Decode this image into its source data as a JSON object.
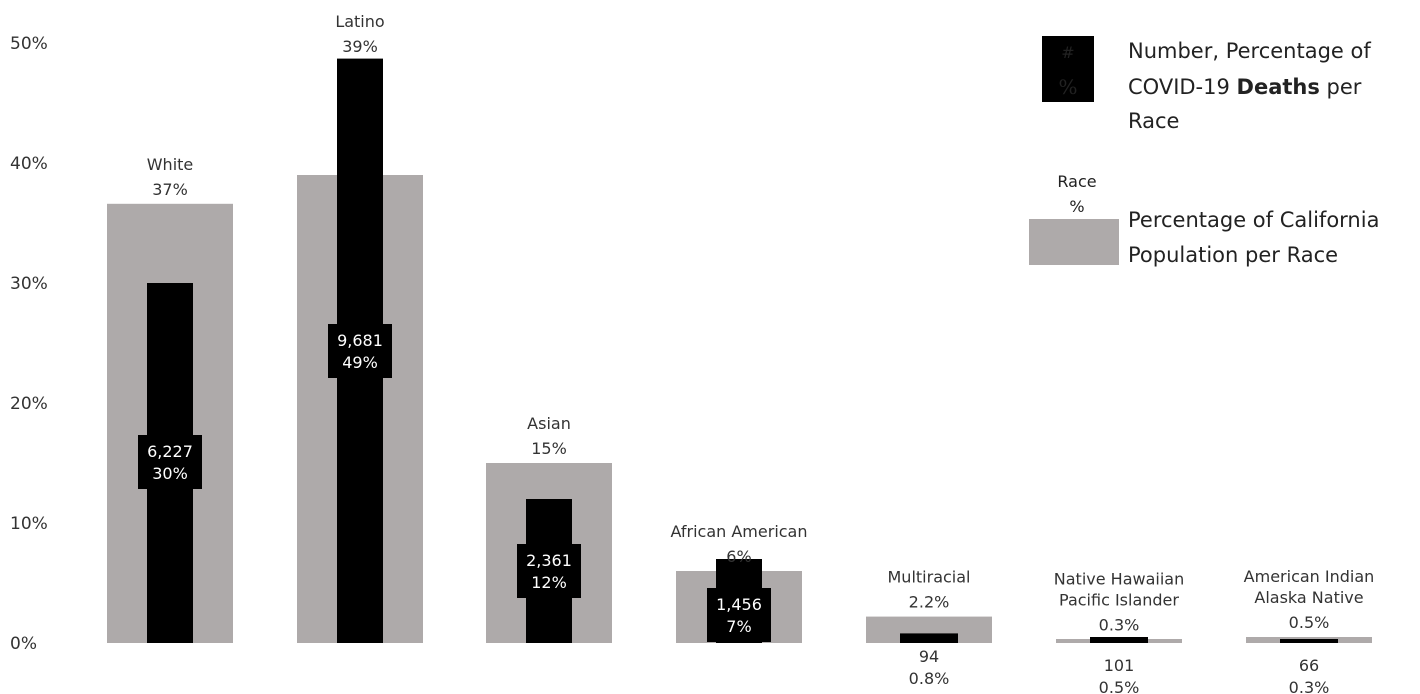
{
  "chart_data": {
    "type": "bar",
    "title": "",
    "xlabel": "",
    "ylabel": "",
    "ylim": [
      0,
      50
    ],
    "yticks": [
      "0%",
      "10%",
      "20%",
      "30%",
      "40%",
      "50%"
    ],
    "grid": false,
    "legend_placement": "top-right",
    "categories": [
      {
        "name_lines": [
          "White"
        ],
        "pop_label": "37%",
        "deaths_label_number": "6,227",
        "deaths_label_pct": "30%"
      },
      {
        "name_lines": [
          "Latino"
        ],
        "pop_label": "39%",
        "deaths_label_number": "9,681",
        "deaths_label_pct": "49%"
      },
      {
        "name_lines": [
          "Asian"
        ],
        "pop_label": "15%",
        "deaths_label_number": "2,361",
        "deaths_label_pct": "12%"
      },
      {
        "name_lines": [
          "African American"
        ],
        "pop_label": "6%",
        "deaths_label_number": "1,456",
        "deaths_label_pct": "7%"
      },
      {
        "name_lines": [
          "Multiracial"
        ],
        "pop_label": "2.2%",
        "deaths_label_number": "94",
        "deaths_label_pct": "0.8%"
      },
      {
        "name_lines": [
          "Native Hawaiian",
          "Pacific Islander"
        ],
        "pop_label": "0.3%",
        "deaths_label_number": "101",
        "deaths_label_pct": "0.5%"
      },
      {
        "name_lines": [
          "American Indian",
          "Alaska Native"
        ],
        "pop_label": "0.5%",
        "deaths_label_number": "66",
        "deaths_label_pct": "0.3%"
      }
    ],
    "series": [
      {
        "key": "population",
        "color": "#aeaaaa",
        "values": [
          36.6,
          39.0,
          15.0,
          6.0,
          2.2,
          0.3,
          0.5
        ]
      },
      {
        "key": "deaths",
        "color": "#000000",
        "values": [
          30.0,
          48.7,
          12.0,
          7.0,
          0.8,
          0.5,
          0.3
        ]
      }
    ],
    "legend": {
      "deaths_symbol_top": "#",
      "deaths_symbol_bottom": "%",
      "deaths_line1": "Number, Percentage of",
      "deaths_line2_pre": "COVID-19 ",
      "deaths_line2_bold": "Deaths",
      "deaths_line2_post": " per",
      "deaths_line3": "Race",
      "pop_symbol_top": "Race",
      "pop_symbol_bottom": "%",
      "pop_line1": "Percentage of California",
      "pop_line2": "Population per Race"
    }
  }
}
